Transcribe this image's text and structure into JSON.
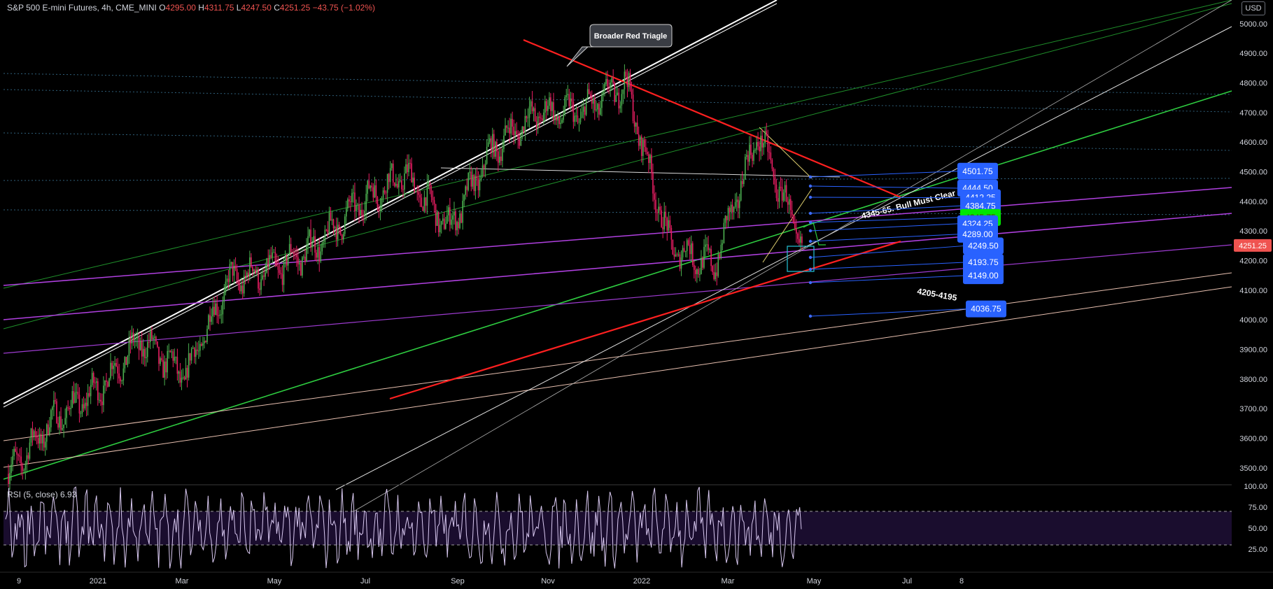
{
  "header": {
    "symbol": "S&P 500 E-mini Futures, 4h, CME_MINI",
    "open_label": "O",
    "open": "4295.00",
    "high_label": "H",
    "high": "4311.75",
    "low_label": "L",
    "low": "4247.50",
    "close_label": "C",
    "close": "4251.25",
    "change": "−43.75 (−1.02%)"
  },
  "currency_button": "USD",
  "rsi": {
    "label": "RSI (5, close)",
    "value": "6.93",
    "levels": [
      25,
      50,
      75,
      100
    ],
    "ob": 70,
    "os": 30
  },
  "colors": {
    "background": "#000000",
    "up_candle": "#4caf50",
    "down_candle": "#e91e63",
    "price_badge": "#ef5350",
    "target_badge": "#2962ff",
    "highlight_badge": "#00e600",
    "trend_red": "#ff2020",
    "trend_green": "#2ecc40",
    "trend_purple": "#b040e0",
    "rsi_line": "#d8c8f0"
  },
  "annotations": {
    "callout": "Broader Red Triagle",
    "bull_note": "4345-65. Bull Must Clear",
    "bear_note": "4205-4195"
  },
  "chart_data": {
    "type": "candlestick",
    "title": "S&P 500 E-mini Futures, 4h, CME_MINI",
    "y_axis": {
      "min": 3450,
      "max": 5080,
      "ticks": [
        3500,
        3600,
        3700,
        3800,
        3900,
        4000,
        4100,
        4200,
        4300,
        4400,
        4500,
        4600,
        4700,
        4800,
        4900,
        5000
      ],
      "tick_labels": [
        "3500.00",
        "3600.00",
        "3700.00",
        "3800.00",
        "3900.00",
        "4000.00",
        "4100.00",
        "4200.00",
        "4300.00",
        "4400.00",
        "4500.00",
        "4600.00",
        "4700.00",
        "4800.00",
        "4900.00",
        "5000.00"
      ]
    },
    "x_axis": {
      "labels": [
        "9",
        "2021",
        "Mar",
        "May",
        "Jul",
        "Sep",
        "Nov",
        "2022",
        "Mar",
        "May",
        "Jul",
        "8"
      ]
    },
    "last_price": "4251.25",
    "price_path": [
      {
        "t": "Nov 2020",
        "price": 3480
      },
      {
        "t": "Dec 2020",
        "price": 3660
      },
      {
        "t": "Jan 2021",
        "price": 3760
      },
      {
        "t": "Feb 2021",
        "price": 3930
      },
      {
        "t": "Mar 2021",
        "price": 3810
      },
      {
        "t": "Apr 2021",
        "price": 4130
      },
      {
        "t": "May 2021",
        "price": 4170
      },
      {
        "t": "Jun 2021",
        "price": 4250
      },
      {
        "t": "Jul 2021",
        "price": 4400
      },
      {
        "t": "Aug 2021",
        "price": 4490
      },
      {
        "t": "Sep 2021",
        "price": 4310
      },
      {
        "t": "Oct 2021",
        "price": 4580
      },
      {
        "t": "Nov 2021",
        "price": 4700
      },
      {
        "t": "Dec 2021",
        "price": 4700
      },
      {
        "t": "Jan 2022",
        "price": 4800
      },
      {
        "t": "Feb 2022",
        "price": 4250
      },
      {
        "t": "Mar 2022",
        "price": 4180
      },
      {
        "t": "Apr 2022",
        "price": 4630
      },
      {
        "t": "May 2022",
        "price": 4250
      }
    ],
    "price_targets": [
      {
        "label": "4501.75",
        "value": 4501.75,
        "highlight": false
      },
      {
        "label": "4444.50",
        "value": 4444.5,
        "highlight": false
      },
      {
        "label": "4412.25",
        "value": 4412.25,
        "highlight": false
      },
      {
        "label": "4384.75",
        "value": 4384.75,
        "highlight": false
      },
      {
        "label": "4345.75",
        "value": 4345.75,
        "highlight": true
      },
      {
        "label": "4324.25",
        "value": 4324.25,
        "highlight": false
      },
      {
        "label": "4289.00",
        "value": 4289.0,
        "highlight": false
      },
      {
        "label": "4249.50",
        "value": 4249.5,
        "highlight": false
      },
      {
        "label": "4193.75",
        "value": 4193.75,
        "highlight": false
      },
      {
        "label": "4149.00",
        "value": 4149.0,
        "highlight": false
      },
      {
        "label": "4036.75",
        "value": 4036.75,
        "highlight": false
      }
    ]
  }
}
